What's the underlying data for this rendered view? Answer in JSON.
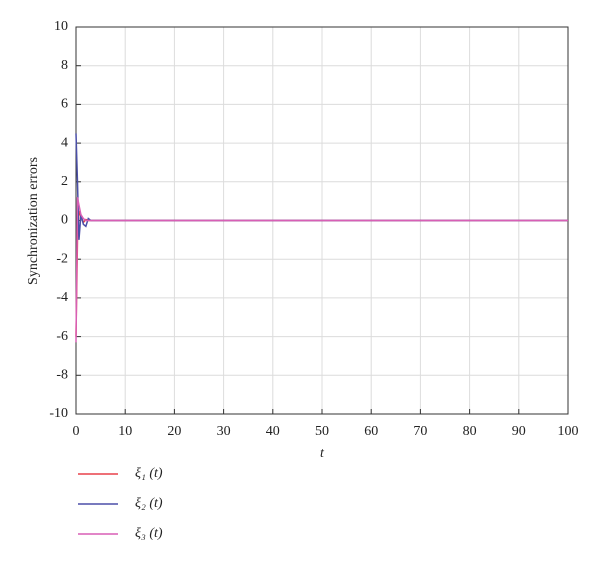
{
  "chart_data": {
    "type": "line",
    "x_label": "t",
    "y_label": "Synchronization errors",
    "x": [
      0,
      0.3,
      0.6,
      1,
      1.5,
      2,
      2.5,
      3,
      4,
      100
    ],
    "series": [
      {
        "name": "ξ₁ (t)",
        "color": "#e8414a",
        "values": [
          -6,
          -1,
          0.5,
          0.2,
          -0.1,
          0.05,
          0,
          0,
          0,
          0
        ]
      },
      {
        "name": "ξ₂ (t)",
        "color": "#4b4fa8",
        "values": [
          4.5,
          2,
          -1,
          0.3,
          -0.2,
          -0.3,
          0.1,
          0,
          0,
          0
        ]
      },
      {
        "name": "ξ₃ (t)",
        "color": "#d85fb5",
        "values": [
          -6.3,
          1.2,
          0.8,
          0.3,
          0.1,
          0,
          0,
          0,
          0,
          0
        ]
      }
    ],
    "xlim": [
      0,
      100
    ],
    "xticks": [
      0,
      10,
      20,
      30,
      40,
      50,
      60,
      70,
      80,
      90,
      100
    ],
    "ylim": [
      -10,
      10
    ],
    "yticks": [
      -10,
      -8,
      -6,
      -4,
      -2,
      0,
      2,
      4,
      6,
      8,
      10
    ],
    "grid": true
  }
}
